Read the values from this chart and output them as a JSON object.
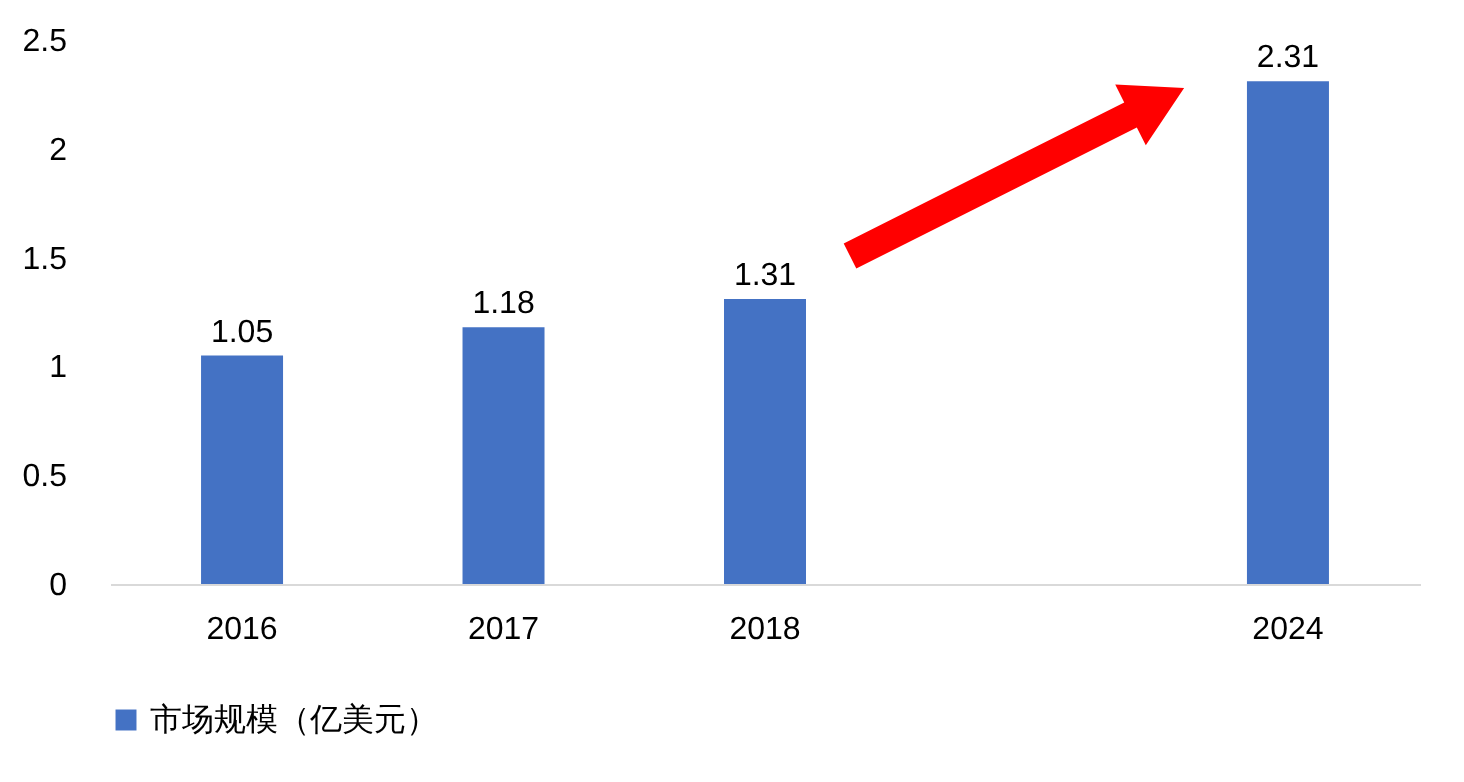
{
  "chart_data": {
    "type": "bar",
    "categories": [
      "2016",
      "2017",
      "2018",
      null,
      "2024"
    ],
    "series": [
      {
        "name": "市场规模（亿美元）",
        "color": "#4472c4",
        "values": [
          1.05,
          1.18,
          1.31,
          null,
          2.31
        ]
      }
    ],
    "ylim": [
      0,
      2.5
    ],
    "yticks": [
      0,
      0.5,
      1,
      1.5,
      2,
      2.5
    ],
    "grid": false,
    "data_labels": true,
    "legend": "bottom"
  }
}
